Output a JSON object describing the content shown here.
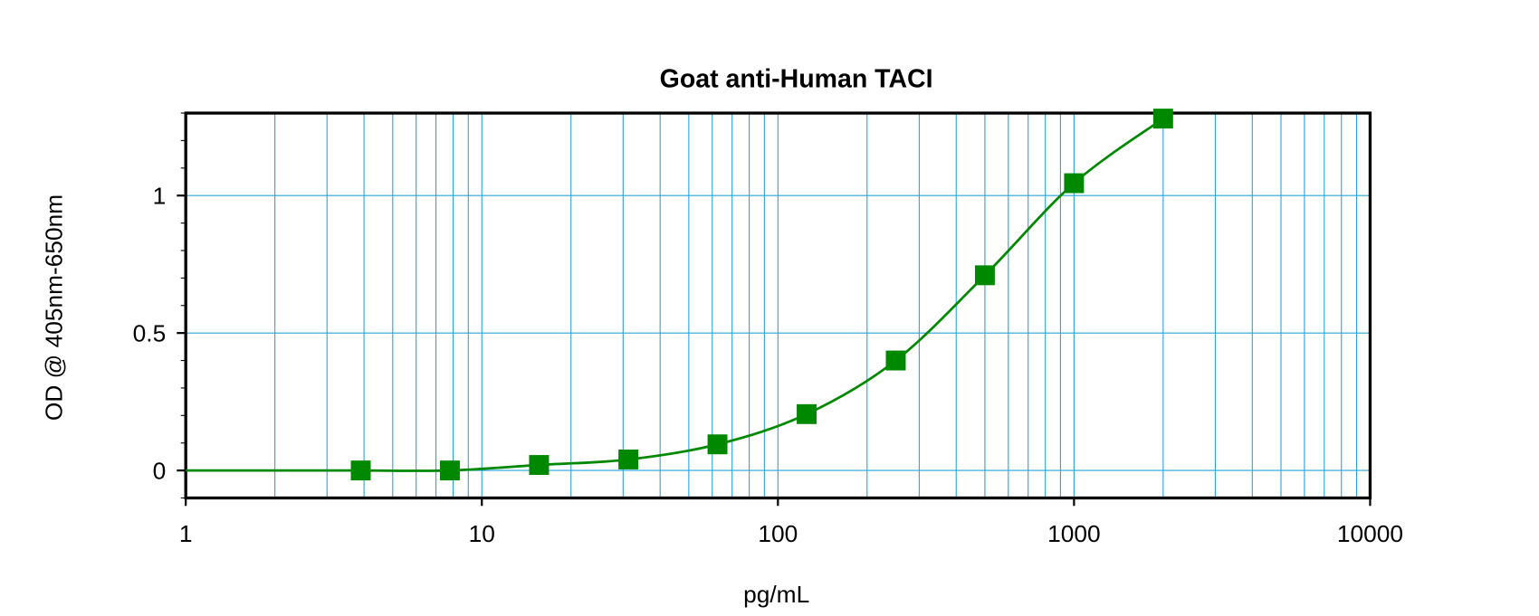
{
  "chart_data": {
    "type": "scatter-line",
    "title": "Goat anti-Human TACI",
    "x_label": "pg/mL",
    "y_label": "OD @ 405nm-650nm",
    "x": [
      3.9,
      7.8,
      15.6,
      31.25,
      62.5,
      125,
      250,
      500,
      1000,
      2000
    ],
    "values": [
      0.0,
      0.0,
      0.02,
      0.04,
      0.095,
      0.205,
      0.4,
      0.71,
      1.045,
      1.28
    ],
    "color": "#008800",
    "grid_color": "#29a3dc",
    "xlog": true,
    "xlim": [
      1,
      10000
    ],
    "xticks": [
      1,
      10,
      100,
      1000,
      10000
    ],
    "ylim": [
      -0.1,
      1.3
    ],
    "yticks": [
      0,
      0.5,
      1
    ],
    "grid": true
  }
}
